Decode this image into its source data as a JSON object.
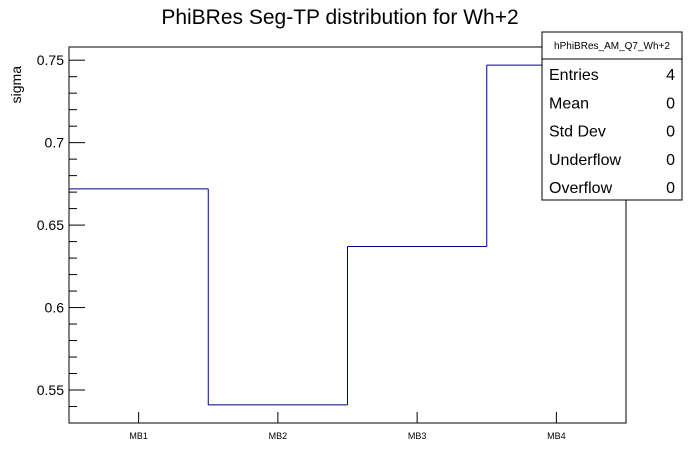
{
  "chart_data": {
    "type": "bar",
    "title": "PhiBRes Seg-TP distribution for Wh+2",
    "xlabel": "",
    "ylabel": "sigma",
    "categories": [
      "MB1",
      "MB2",
      "MB3",
      "MB4"
    ],
    "values": [
      0.672,
      0.541,
      0.637,
      0.747
    ],
    "ylim": [
      0.53,
      0.758
    ],
    "yticks": [
      0.55,
      0.6,
      0.65,
      0.7,
      0.75
    ],
    "ytick_labels": [
      "0.55",
      "0.6",
      "0.65",
      "0.7",
      "0.75"
    ],
    "line_color": "#000080",
    "grid": false,
    "stats_box": {
      "name": "hPhiBRes_AM_Q7_Wh+2",
      "rows": [
        {
          "label": "Entries",
          "value": "4"
        },
        {
          "label": "Mean",
          "value": "0"
        },
        {
          "label": "Std Dev",
          "value": "0"
        },
        {
          "label": "Underflow",
          "value": "0"
        },
        {
          "label": "Overflow",
          "value": "0"
        }
      ]
    }
  }
}
